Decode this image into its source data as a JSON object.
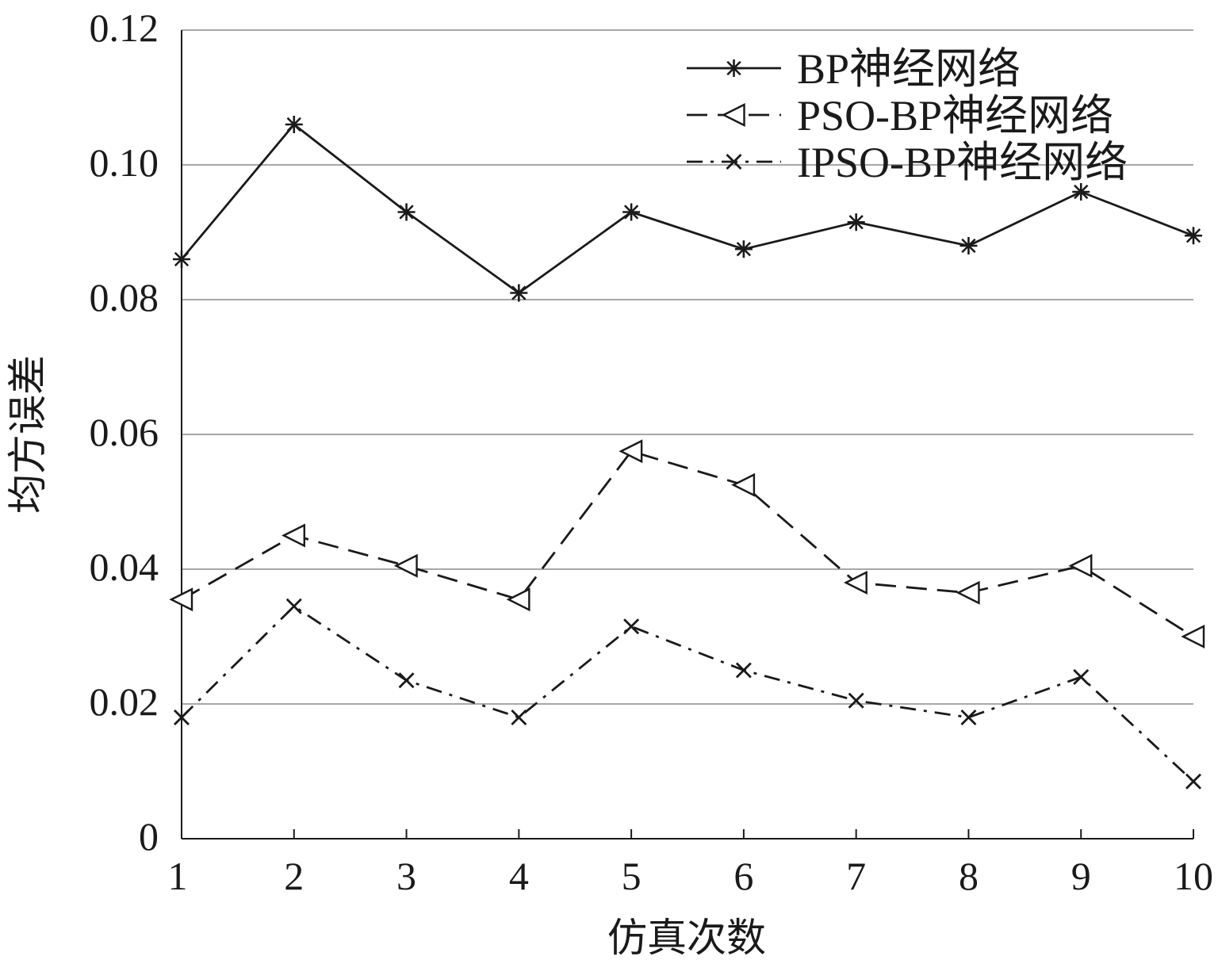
{
  "chart_data": {
    "type": "line",
    "title": "",
    "xlabel": "仿真次数",
    "ylabel": "均方误差",
    "x": [
      1,
      2,
      3,
      4,
      5,
      6,
      7,
      8,
      9,
      10
    ],
    "xlim": [
      1,
      10
    ],
    "ylim": [
      0,
      0.12
    ],
    "yticks": [
      "0",
      "0.02",
      "0.04",
      "0.06",
      "0.08",
      "0.10",
      "0.12"
    ],
    "grid": "horizontal",
    "legend_position": "top-right",
    "series": [
      {
        "name": "BP神经网络",
        "line_style": "solid",
        "marker": "asterisk",
        "values": [
          0.086,
          0.106,
          0.093,
          0.081,
          0.093,
          0.0875,
          0.0915,
          0.088,
          0.096,
          0.0895
        ]
      },
      {
        "name": "PSO-BP神经网络",
        "line_style": "dashed",
        "marker": "left-triangle",
        "values": [
          0.0355,
          0.045,
          0.0405,
          0.0355,
          0.0575,
          0.0525,
          0.038,
          0.0365,
          0.0405,
          0.03
        ]
      },
      {
        "name": "IPSO-BP神经网络",
        "line_style": "dash-dot",
        "marker": "x",
        "values": [
          0.018,
          0.0345,
          0.0235,
          0.018,
          0.0315,
          0.025,
          0.0205,
          0.018,
          0.024,
          0.0085
        ]
      }
    ],
    "colors": {
      "line": "#1a1a1a",
      "grid": "#8a8a8a",
      "background": "#ffffff"
    }
  }
}
